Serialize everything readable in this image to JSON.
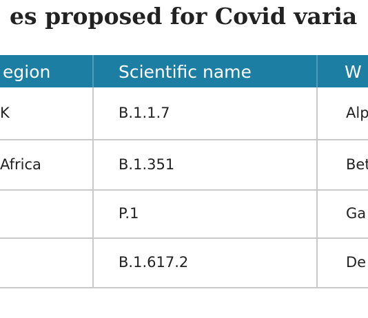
{
  "title": "es proposed for Covid varia",
  "table": {
    "header": [
      "egion",
      "Scientific name",
      "W"
    ],
    "rows": [
      {
        "region": "K",
        "scientific": "B.1.1.7",
        "who": "Alp"
      },
      {
        "region": "Africa",
        "scientific": "B.1.351",
        "who": "Bet"
      },
      {
        "scientific": "P.1",
        "who": "Ga"
      },
      {
        "scientific": "B.1.617.2",
        "who": "De"
      }
    ]
  }
}
